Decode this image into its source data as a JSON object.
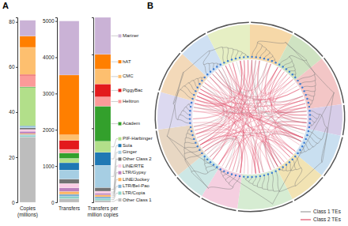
{
  "panel_a": {
    "label": "A"
  },
  "chart_data": [
    {
      "type": "bar",
      "stacked": true,
      "x_label": "Copies\n(millions)",
      "categories": [
        null
      ],
      "ylim": [
        0,
        82
      ],
      "yticks": [
        0,
        20,
        40,
        60,
        80
      ],
      "series": [
        {
          "color": "#bdbdbd",
          "values": [
            29
          ]
        },
        {
          "color": "#8dd3c7",
          "values": [
            0.6
          ]
        },
        {
          "color": "#80b1d3",
          "values": [
            0.5
          ]
        },
        {
          "color": "#fdb462",
          "values": [
            0.4
          ]
        },
        {
          "color": "#bc80bd",
          "values": [
            1.0
          ]
        },
        {
          "color": "#fccde5",
          "values": [
            0.8
          ]
        },
        {
          "color": "#737373",
          "values": [
            0.7
          ]
        },
        {
          "color": "#a6cee3",
          "values": [
            0.5
          ]
        },
        {
          "color": "#1f78b4",
          "values": [
            0.4
          ]
        },
        {
          "color": "#b2df8a",
          "values": [
            17
          ]
        },
        {
          "color": "#33a02c",
          "values": [
            0.3
          ]
        },
        {
          "color": "#fb9a99",
          "values": [
            5
          ]
        },
        {
          "color": "#e31a1c",
          "values": [
            0.5
          ]
        },
        {
          "color": "#fdbf6f",
          "values": [
            12
          ]
        },
        {
          "color": "#ff7f00",
          "values": [
            5
          ]
        },
        {
          "color": "#cab2d6",
          "values": [
            7
          ]
        }
      ]
    },
    {
      "type": "bar",
      "stacked": true,
      "x_label": "Transfers",
      "categories": [
        null
      ],
      "ylim": [
        0,
        5100
      ],
      "yticks": [
        0,
        1000,
        2000,
        3000,
        4000,
        5000
      ],
      "series": [
        {
          "color": "#bdbdbd",
          "values": [
            100
          ]
        },
        {
          "color": "#8dd3c7",
          "values": [
            60
          ]
        },
        {
          "color": "#80b1d3",
          "values": [
            60
          ]
        },
        {
          "color": "#fdb462",
          "values": [
            80
          ]
        },
        {
          "color": "#bc80bd",
          "values": [
            100
          ]
        },
        {
          "color": "#fccde5",
          "values": [
            120
          ]
        },
        {
          "color": "#737373",
          "values": [
            120
          ]
        },
        {
          "color": "#a6cee3",
          "values": [
            250
          ]
        },
        {
          "color": "#1f78b4",
          "values": [
            200
          ]
        },
        {
          "color": "#b2df8a",
          "values": [
            120
          ]
        },
        {
          "color": "#33a02c",
          "values": [
            150
          ]
        },
        {
          "color": "#fb9a99",
          "values": [
            100
          ]
        },
        {
          "color": "#e31a1c",
          "values": [
            250
          ]
        },
        {
          "color": "#fdbf6f",
          "values": [
            150
          ]
        },
        {
          "color": "#ff7f00",
          "values": [
            1650
          ]
        },
        {
          "color": "#cab2d6",
          "values": [
            1490
          ]
        }
      ]
    },
    {
      "type": "bar",
      "stacked": true,
      "x_label": "Transfers per\nmillion copies",
      "categories": [
        null
      ],
      "ylim": [
        0,
        100
      ],
      "yticks": [
        0,
        20,
        40,
        60,
        80,
        100
      ],
      "tick_labels": false,
      "legend": "right",
      "series": [
        {
          "name": "Other Class 1",
          "color": "#bdbdbd",
          "values": [
            1
          ]
        },
        {
          "name": "LTR/Copia",
          "color": "#8dd3c7",
          "values": [
            1
          ]
        },
        {
          "name": "LTR/Bel-Pao",
          "color": "#80b1d3",
          "values": [
            1
          ]
        },
        {
          "name": "LINE/Jockey",
          "color": "#fdb462",
          "values": [
            1
          ]
        },
        {
          "name": "LTR/Gypsy",
          "color": "#bc80bd",
          "values": [
            1
          ]
        },
        {
          "name": "LINE/RTE",
          "color": "#fccde5",
          "values": [
            1
          ]
        },
        {
          "name": "Other Class 2",
          "color": "#737373",
          "values": [
            2
          ]
        },
        {
          "name": "Ginger",
          "color": "#a6cee3",
          "values": [
            12
          ]
        },
        {
          "name": "Sola",
          "color": "#1f78b4",
          "values": [
            7
          ]
        },
        {
          "name": "PIF-Harbinger",
          "color": "#b2df8a",
          "values": [
            6
          ]
        },
        {
          "name": "Academ",
          "color": "#33a02c",
          "values": [
            19
          ]
        },
        {
          "name": "Helitron",
          "color": "#fb9a99",
          "values": [
            5
          ]
        },
        {
          "name": "PiggyBac",
          "color": "#e31a1c",
          "values": [
            7
          ]
        },
        {
          "name": "CMC",
          "color": "#fdbf6f",
          "values": [
            8
          ]
        },
        {
          "name": "hAT",
          "color": "#ff7f00",
          "values": [
            8
          ]
        },
        {
          "name": "Mariner",
          "color": "#cab2d6",
          "values": [
            20
          ]
        }
      ]
    }
  ],
  "panel_b": {
    "label": "B",
    "legend": [
      {
        "name": "Class 1 TEs",
        "color": "#9e9e9e"
      },
      {
        "name": "Class 2 TEs",
        "color": "#e0506a"
      }
    ]
  }
}
